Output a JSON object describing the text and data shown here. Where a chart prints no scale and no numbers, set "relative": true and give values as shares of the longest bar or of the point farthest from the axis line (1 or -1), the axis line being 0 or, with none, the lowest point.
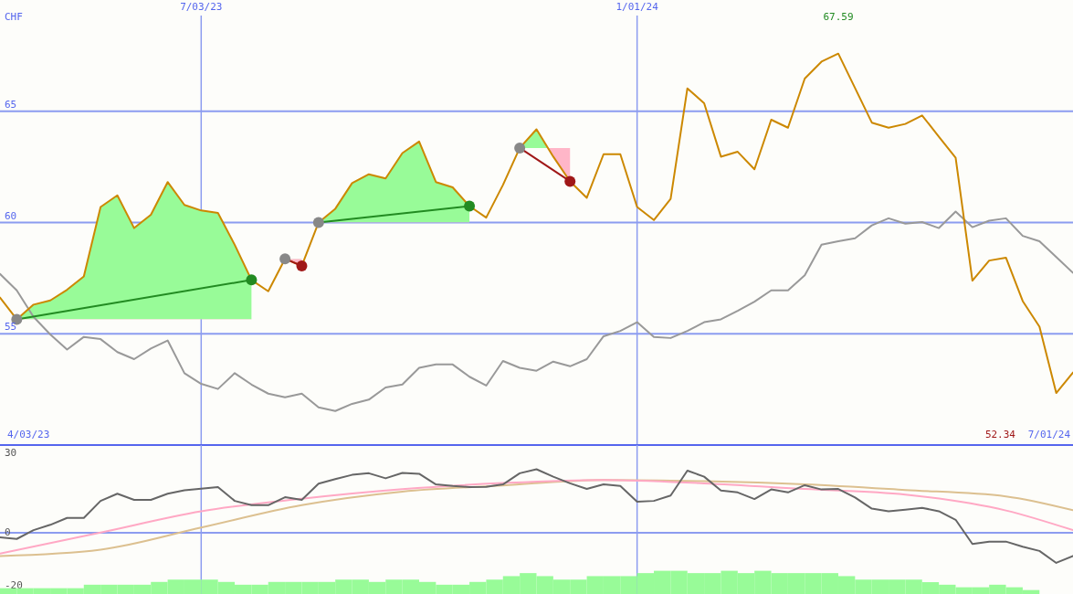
{
  "chart_data": [
    {
      "type": "line",
      "ylabel": "CHF",
      "x": [
        "2023-04-10",
        "2023-04-17",
        "2023-04-24",
        "2023-05-01",
        "2023-05-08",
        "2023-05-15",
        "2023-05-22",
        "2023-05-29",
        "2023-06-05",
        "2023-06-12",
        "2023-06-19",
        "2023-06-26",
        "2023-07-03",
        "2023-07-10",
        "2023-07-17",
        "2023-07-24",
        "2023-07-31",
        "2023-08-07",
        "2023-08-14",
        "2023-08-21",
        "2023-08-28",
        "2023-09-04",
        "2023-09-11",
        "2023-09-18",
        "2023-09-25",
        "2023-10-02",
        "2023-10-09",
        "2023-10-16",
        "2023-10-23",
        "2023-10-30",
        "2023-11-06",
        "2023-11-13",
        "2023-11-20",
        "2023-11-27",
        "2023-12-04",
        "2023-12-11",
        "2023-12-18",
        "2023-12-25",
        "2024-01-01",
        "2024-01-08",
        "2024-01-15",
        "2024-01-22",
        "2024-01-29",
        "2024-02-05",
        "2024-02-12",
        "2024-02-19",
        "2024-02-26",
        "2024-03-04",
        "2024-03-11",
        "2024-03-18",
        "2024-03-25",
        "2024-04-01",
        "2024-04-08",
        "2024-04-15",
        "2024-04-22",
        "2024-04-29",
        "2024-05-06",
        "2024-05-13",
        "2024-05-20",
        "2024-05-27",
        "2024-06-03",
        "2024-06-10",
        "2024-06-17",
        "2024-06-24",
        "2024-07-01"
      ],
      "xlim": [
        "2023-04-10",
        "2024-07-01"
      ],
      "xticks": [
        {
          "value": "2023-07-03",
          "label": "7/03/23"
        },
        {
          "value": "2024-01-01",
          "label": "1/01/24"
        }
      ],
      "ylim": [
        50,
        70
      ],
      "yticks": [
        55,
        60,
        65
      ],
      "grid": true,
      "series": [
        {
          "color": "#999999",
          "values": [
            57.69,
            56.95,
            55.76,
            54.97,
            54.29,
            54.86,
            54.76,
            54.18,
            53.86,
            54.34,
            54.7,
            53.23,
            52.75,
            52.52,
            53.23,
            52.72,
            52.31,
            52.15,
            52.31,
            51.69,
            51.53,
            51.85,
            52.04,
            52.59,
            52.72,
            53.47,
            53.62,
            53.62,
            53.07,
            52.67,
            53.78,
            53.47,
            53.34,
            53.75,
            53.54,
            53.86,
            54.89,
            55.13,
            55.52,
            54.86,
            54.81,
            55.13,
            55.52,
            55.65,
            56.03,
            56.44,
            56.95,
            56.95,
            57.63,
            59.0,
            59.16,
            59.29,
            59.87,
            60.19,
            59.95,
            60.02,
            59.75,
            60.49,
            59.79,
            60.08,
            60.19,
            59.4,
            59.16,
            58.45,
            57.74
          ]
        },
        {
          "color": "#cc8800",
          "values": [
            56.63,
            55.65,
            56.31,
            56.5,
            56.98,
            57.58,
            60.7,
            61.22,
            59.75,
            60.35,
            61.82,
            60.79,
            60.54,
            60.43,
            59.0,
            57.42,
            56.91,
            58.37,
            58.05,
            60.0,
            60.62,
            61.77,
            62.17,
            61.98,
            63.12,
            63.64,
            61.82,
            61.58,
            60.74,
            60.22,
            61.69,
            63.35,
            64.19,
            62.96,
            61.85,
            61.11,
            63.07,
            63.07,
            60.7,
            60.11,
            61.06,
            66.03,
            65.36,
            62.96,
            63.18,
            62.39,
            64.62,
            64.26,
            66.47,
            67.23,
            67.59,
            66.04,
            64.49,
            64.26,
            64.43,
            64.81,
            63.86,
            62.91,
            57.39,
            58.29,
            58.42,
            56.47,
            55.32,
            52.34,
            53.26
          ]
        },
        {
          "color": "#228b22",
          "x": [
            "2023-04-17",
            "2023-07-24"
          ],
          "values": [
            55.65,
            57.42
          ]
        },
        {
          "color": "#a01818",
          "x": [
            "2023-08-07",
            "2023-08-14"
          ],
          "values": [
            58.37,
            58.05
          ]
        },
        {
          "color": "#228b22",
          "x": [
            "2023-08-21",
            "2023-10-23"
          ],
          "values": [
            60.0,
            60.74
          ]
        },
        {
          "color": "#a01818",
          "x": [
            "2023-11-13",
            "2023-12-04"
          ],
          "values": [
            63.35,
            61.85
          ]
        },
        {
          "type": "scatter",
          "color": "#888888",
          "marker": "circle",
          "x": [
            "2023-04-17",
            "2023-08-07",
            "2023-08-21",
            "2023-11-13"
          ],
          "values": [
            55.65,
            58.37,
            60.0,
            63.35
          ]
        },
        {
          "type": "scatter",
          "color": "#228b22",
          "marker": "circle",
          "x": [
            "2023-07-24",
            "2023-10-23"
          ],
          "values": [
            57.42,
            60.74
          ]
        },
        {
          "type": "scatter",
          "color": "#a01818",
          "marker": "circle",
          "x": [
            "2023-08-14",
            "2023-12-04"
          ],
          "values": [
            58.05,
            61.85
          ]
        }
      ],
      "annotations": [
        "67.59",
        "52.34",
        "4/03/23",
        "7/01/24"
      ]
    },
    {
      "type": "line",
      "x": [
        "2023-04-10",
        "2023-04-17",
        "2023-04-24",
        "2023-05-01",
        "2023-05-08",
        "2023-05-15",
        "2023-05-22",
        "2023-05-29",
        "2023-06-05",
        "2023-06-12",
        "2023-06-19",
        "2023-06-26",
        "2023-07-03",
        "2023-07-10",
        "2023-07-17",
        "2023-07-24",
        "2023-07-31",
        "2023-08-07",
        "2023-08-14",
        "2023-08-21",
        "2023-08-28",
        "2023-09-04",
        "2023-09-11",
        "2023-09-18",
        "2023-09-25",
        "2023-10-02",
        "2023-10-09",
        "2023-10-16",
        "2023-10-23",
        "2023-10-30",
        "2023-11-06",
        "2023-11-13",
        "2023-11-20",
        "2023-11-27",
        "2023-12-04",
        "2023-12-11",
        "2023-12-18",
        "2023-12-25",
        "2024-01-01",
        "2024-01-08",
        "2024-01-15",
        "2024-01-22",
        "2024-01-29",
        "2024-02-05",
        "2024-02-12",
        "2024-02-19",
        "2024-02-26",
        "2024-03-04",
        "2024-03-11",
        "2024-03-18",
        "2024-03-25",
        "2024-04-01",
        "2024-04-08",
        "2024-04-15",
        "2024-04-22",
        "2024-04-29",
        "2024-05-06",
        "2024-05-13",
        "2024-05-20",
        "2024-05-27",
        "2024-06-03",
        "2024-06-10",
        "2024-06-17",
        "2024-06-24",
        "2024-07-01"
      ],
      "xlim": [
        "2023-04-10",
        "2024-07-01"
      ],
      "xticks": [
        {
          "value": "2023-07-03",
          "label": null
        },
        {
          "value": "2024-01-01",
          "label": null
        }
      ],
      "ylim": [
        -23,
        33
      ],
      "yticks": [
        30,
        0,
        -20
      ],
      "grid": "x",
      "tick_labels": "y",
      "ref_lines": [
        {
          "axis": "y",
          "value": 0,
          "color": "#8c9cf0"
        }
      ],
      "series": [
        {
          "color": "#dcc090",
          "x": [
            "2023-04-10",
            "2023-05-22",
            "2023-07-03",
            "2023-08-14",
            "2023-09-25",
            "2023-11-06",
            "2023-12-18",
            "2024-01-29",
            "2024-03-11",
            "2024-04-22",
            "2024-06-03",
            "2024-07-01"
          ],
          "values": [
            -8.7,
            -6.3,
            2.0,
            10.4,
            15.5,
            17.8,
            19.9,
            19.4,
            18.2,
            16.1,
            13.7,
            8.5
          ]
        },
        {
          "color": "#ffa8c4",
          "x": [
            "2023-04-10",
            "2023-05-22",
            "2023-07-03",
            "2023-08-14",
            "2023-09-25",
            "2023-11-06",
            "2023-12-18",
            "2024-01-29",
            "2024-03-11",
            "2024-04-22",
            "2024-06-03",
            "2024-07-01"
          ],
          "values": [
            -7.8,
            0.1,
            8.1,
            12.8,
            16.4,
            18.7,
            19.9,
            18.6,
            16.5,
            14.4,
            8.4,
            1.0
          ]
        },
        {
          "color": "#666666",
          "values": [
            -1.7,
            -2.3,
            1.0,
            3.0,
            5.6,
            5.6,
            12.0,
            14.7,
            12.4,
            12.4,
            14.7,
            16.0,
            16.6,
            17.2,
            12.0,
            10.4,
            10.4,
            13.4,
            12.4,
            18.5,
            20.2,
            21.8,
            22.4,
            20.5,
            22.5,
            22.2,
            18.2,
            17.6,
            17.2,
            17.3,
            18.2,
            22.4,
            23.9,
            21.1,
            18.6,
            16.5,
            18.2,
            17.6,
            11.7,
            12.0,
            14.0,
            23.4,
            21.1,
            15.9,
            15.2,
            12.7,
            16.3,
            15.2,
            17.9,
            16.3,
            16.5,
            13.3,
            9.1,
            8.1,
            8.7,
            9.4,
            8.1,
            4.9,
            -4.2,
            -3.3,
            -3.3,
            -5.2,
            -6.8,
            -11.3,
            -8.7
          ]
        }
      ]
    },
    {
      "type": "bar",
      "relative": true,
      "x": [
        "2023-04-13T12:00",
        "2023-04-20T12:00",
        "2023-04-27T12:00",
        "2023-05-04T12:00",
        "2023-05-11T12:00",
        "2023-05-18T12:00",
        "2023-05-25T12:00",
        "2023-06-01T12:00",
        "2023-06-08T12:00",
        "2023-06-15T12:00",
        "2023-06-22T12:00",
        "2023-06-29T12:00",
        "2023-07-06T12:00",
        "2023-07-13T12:00",
        "2023-07-20T12:00",
        "2023-07-27T12:00",
        "2023-08-03T12:00",
        "2023-08-10T12:00",
        "2023-08-17T12:00",
        "2023-08-24T12:00",
        "2023-08-31T12:00",
        "2023-09-07T12:00",
        "2023-09-14T12:00",
        "2023-09-21T12:00",
        "2023-09-28T12:00",
        "2023-10-05T12:00",
        "2023-10-12T12:00",
        "2023-10-19T12:00",
        "2023-10-26T12:00",
        "2023-11-02T12:00",
        "2023-11-09T12:00",
        "2023-11-16T12:00",
        "2023-11-23T12:00",
        "2023-11-30T12:00",
        "2023-12-07T12:00",
        "2023-12-14T12:00",
        "2023-12-21T12:00",
        "2023-12-28T12:00",
        "2024-01-04T12:00",
        "2024-01-11T12:00",
        "2024-01-18T12:00",
        "2024-01-25T12:00",
        "2024-02-01T12:00",
        "2024-02-08T12:00",
        "2024-02-15T12:00",
        "2024-02-22T12:00",
        "2024-02-29T12:00",
        "2024-03-07T12:00",
        "2024-03-14T12:00",
        "2024-03-21T12:00",
        "2024-03-28T12:00",
        "2024-04-04T12:00",
        "2024-04-11T12:00",
        "2024-04-18T12:00",
        "2024-04-25T12:00",
        "2024-05-02T12:00",
        "2024-05-09T12:00",
        "2024-05-16T12:00",
        "2024-05-23T12:00",
        "2024-05-30T12:00",
        "2024-06-06T12:00",
        "2024-06-13T12:00"
      ],
      "xlim": [
        "2023-04-10",
        "2024-07-01"
      ],
      "values": [
        0.25,
        0.25,
        0.25,
        0.25,
        0.25,
        0.4,
        0.4,
        0.4,
        0.4,
        0.52,
        0.62,
        0.62,
        0.62,
        0.52,
        0.4,
        0.4,
        0.52,
        0.52,
        0.52,
        0.52,
        0.62,
        0.62,
        0.52,
        0.62,
        0.62,
        0.52,
        0.4,
        0.4,
        0.52,
        0.62,
        0.77,
        0.9,
        0.77,
        0.62,
        0.62,
        0.77,
        0.77,
        0.77,
        0.9,
        1,
        1,
        0.9,
        0.9,
        1,
        0.9,
        1,
        0.9,
        0.9,
        0.9,
        0.9,
        0.77,
        0.62,
        0.62,
        0.62,
        0.62,
        0.51,
        0.4,
        0.29,
        0.29,
        0.4,
        0.29,
        0.17
      ],
      "color": "#98fb98"
    }
  ]
}
